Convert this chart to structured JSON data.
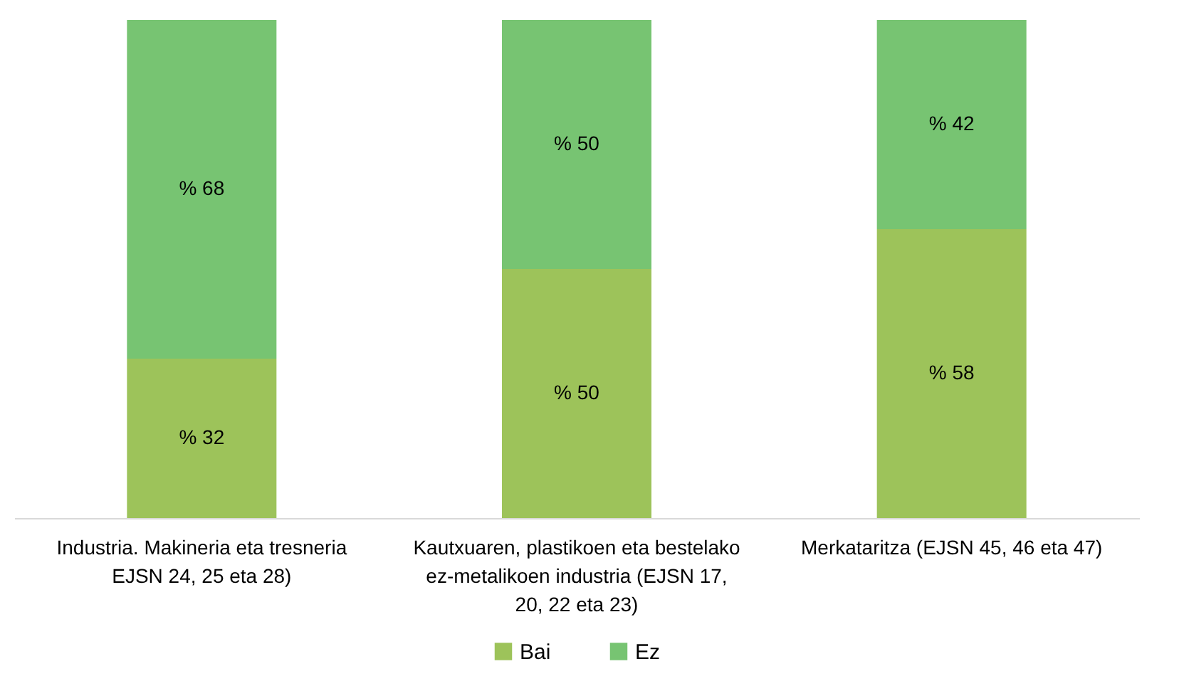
{
  "chart_data": {
    "type": "bar",
    "stacked": true,
    "categories": [
      "Industria. Makineria eta tresneria EJSN 24, 25 eta 28)",
      "Kautxuaren, plastikoen eta bestelako ez-metalikoen industria (EJSN 17, 20, 22 eta 23)",
      "Merkataritza (EJSN 45, 46 eta 47)"
    ],
    "series": [
      {
        "name": "Bai",
        "color": "#9dc35a",
        "values": [
          32,
          50,
          58
        ],
        "value_labels": [
          "% 32",
          "% 50",
          "% 58"
        ]
      },
      {
        "name": "Ez",
        "color": "#77c472",
        "values": [
          68,
          50,
          42
        ],
        "value_labels": [
          "% 68",
          "% 50",
          "% 42"
        ]
      }
    ],
    "ylim": [
      0,
      100
    ],
    "tick_labels": "x",
    "legend": "bottom"
  }
}
